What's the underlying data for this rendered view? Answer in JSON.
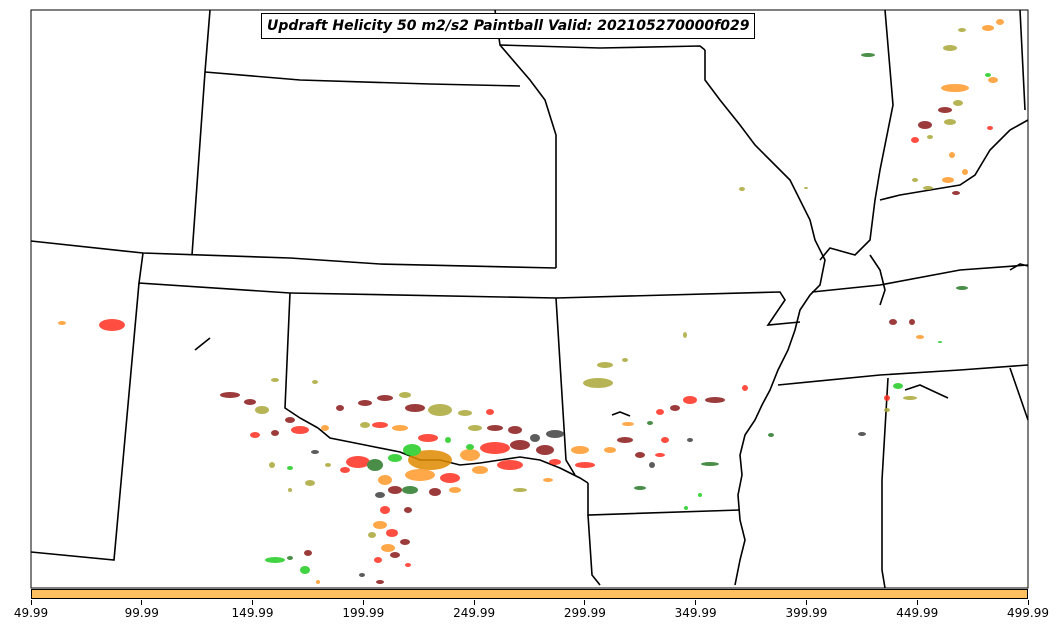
{
  "title": "Updraft Helicity 50 m2/s2 Paintball Valid: 202105270000f029",
  "colorbar": {
    "color": "#ffc060",
    "ticks": [
      "49.99",
      "99.99",
      "149.99",
      "199.99",
      "249.99",
      "299.99",
      "349.99",
      "399.99",
      "449.99",
      "499.99"
    ]
  },
  "colors": {
    "dark_red": "#8b1a1a",
    "red": "#ff3020",
    "orange": "#ff9a2a",
    "olive": "#aaa838",
    "green": "#22cc22",
    "dark_green": "#2a7a2a",
    "gray": "#404040"
  }
}
